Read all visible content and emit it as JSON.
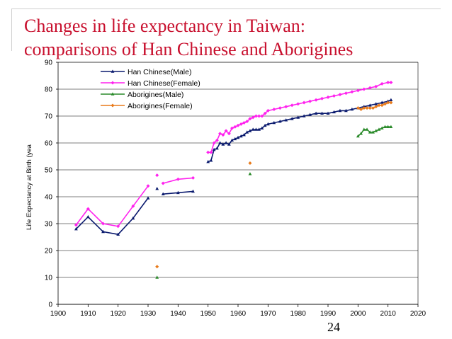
{
  "slide": {
    "title_line1": "Changes in life expectancy in Taiwan:",
    "title_line2": "comparisons of Han Chinese and Aborigines",
    "page_number": "24"
  },
  "colors": {
    "title": "#c8102e",
    "han_male": "#0a1a6e",
    "han_female": "#ff22ee",
    "abo_male": "#2a8a2a",
    "abo_female": "#e87a1a"
  },
  "chart_data": {
    "type": "line",
    "ylabel": "Life Expectancy at Birth (yea",
    "xlabel": "",
    "xlim": [
      1900,
      2020
    ],
    "ylim": [
      0,
      90
    ],
    "x_ticks": [
      "1900",
      "1910",
      "1920",
      "1930",
      "1940",
      "1950",
      "1960",
      "1970",
      "1980",
      "1990",
      "2000",
      "2010",
      "2020"
    ],
    "y_ticks": [
      "0",
      "10",
      "20",
      "30",
      "40",
      "50",
      "60",
      "70",
      "80",
      "90"
    ],
    "grid": "horizontal",
    "legend_position": "top-left",
    "series": [
      {
        "name": "Han Chinese(Male)",
        "color": "#0a1a6e",
        "marker": "triangle",
        "segments": [
          [
            [
              1906,
              28
            ],
            [
              1910,
              32.5
            ],
            [
              1915,
              27
            ],
            [
              1920,
              26
            ],
            [
              1925,
              32
            ],
            [
              1930,
              39.5
            ]
          ],
          [
            [
              1933,
              43
            ]
          ],
          [
            [
              1935,
              41
            ],
            [
              1940,
              41.5
            ],
            [
              1945,
              42
            ]
          ],
          [
            [
              1950,
              53
            ],
            [
              1951,
              53.5
            ],
            [
              1952,
              57.5
            ],
            [
              1953,
              58
            ],
            [
              1954,
              60
            ],
            [
              1955,
              59.5
            ],
            [
              1956,
              60
            ],
            [
              1957,
              59.5
            ],
            [
              1958,
              61
            ],
            [
              1959,
              61.5
            ],
            [
              1960,
              62
            ],
            [
              1961,
              62.5
            ],
            [
              1962,
              63
            ],
            [
              1963,
              64
            ],
            [
              1964,
              64.5
            ],
            [
              1965,
              65
            ],
            [
              1966,
              65
            ],
            [
              1967,
              65
            ],
            [
              1968,
              65.5
            ],
            [
              1969,
              66.5
            ],
            [
              1970,
              67
            ],
            [
              1972,
              67.5
            ],
            [
              1974,
              68
            ],
            [
              1976,
              68.5
            ],
            [
              1978,
              69
            ],
            [
              1980,
              69.5
            ],
            [
              1982,
              70
            ],
            [
              1984,
              70.5
            ],
            [
              1986,
              71
            ],
            [
              1988,
              71
            ],
            [
              1990,
              71
            ],
            [
              1992,
              71.5
            ],
            [
              1994,
              72
            ],
            [
              1996,
              72
            ],
            [
              1998,
              72.5
            ],
            [
              2000,
              73
            ],
            [
              2002,
              73.5
            ],
            [
              2004,
              74
            ],
            [
              2006,
              74.5
            ],
            [
              2008,
              75
            ],
            [
              2010,
              75.5
            ],
            [
              2011,
              76
            ]
          ]
        ]
      },
      {
        "name": "Han Chinese(Female)",
        "color": "#ff22ee",
        "marker": "diamond",
        "segments": [
          [
            [
              1906,
              29.5
            ],
            [
              1910,
              35.5
            ],
            [
              1915,
              30
            ],
            [
              1920,
              29
            ],
            [
              1925,
              36.5
            ],
            [
              1930,
              44
            ]
          ],
          [
            [
              1933,
              48
            ]
          ],
          [
            [
              1935,
              45
            ],
            [
              1940,
              46.5
            ],
            [
              1945,
              47
            ]
          ],
          [
            [
              1950,
              56.5
            ],
            [
              1951,
              56.5
            ],
            [
              1952,
              60
            ],
            [
              1953,
              61
            ],
            [
              1954,
              63.5
            ],
            [
              1955,
              63
            ],
            [
              1956,
              64.5
            ],
            [
              1957,
              63.5
            ],
            [
              1958,
              65.5
            ],
            [
              1959,
              66
            ],
            [
              1960,
              66.5
            ],
            [
              1961,
              67
            ],
            [
              1962,
              67.5
            ],
            [
              1963,
              68
            ],
            [
              1964,
              69
            ],
            [
              1965,
              69.5
            ],
            [
              1966,
              70
            ],
            [
              1967,
              70
            ],
            [
              1968,
              70
            ],
            [
              1969,
              71
            ],
            [
              1970,
              72
            ],
            [
              1972,
              72.5
            ],
            [
              1974,
              73
            ],
            [
              1976,
              73.5
            ],
            [
              1978,
              74
            ],
            [
              1980,
              74.5
            ],
            [
              1982,
              75
            ],
            [
              1984,
              75.5
            ],
            [
              1986,
              76
            ],
            [
              1988,
              76.5
            ],
            [
              1990,
              77
            ],
            [
              1992,
              77.5
            ],
            [
              1994,
              78
            ],
            [
              1996,
              78.5
            ],
            [
              1998,
              79
            ],
            [
              2000,
              79.5
            ],
            [
              2002,
              80
            ],
            [
              2004,
              80.5
            ],
            [
              2006,
              81
            ],
            [
              2008,
              82
            ],
            [
              2010,
              82.5
            ],
            [
              2011,
              82.5
            ]
          ]
        ]
      },
      {
        "name": "Aborigines(Male)",
        "color": "#2a8a2a",
        "marker": "triangle",
        "segments": [
          [
            [
              1933,
              10
            ]
          ],
          [
            [
              1964,
              48.5
            ]
          ],
          [
            [
              2000,
              62.5
            ],
            [
              2001,
              63.5
            ],
            [
              2002,
              65
            ],
            [
              2003,
              65
            ],
            [
              2004,
              64
            ],
            [
              2005,
              64
            ],
            [
              2006,
              64.5
            ],
            [
              2007,
              65
            ],
            [
              2008,
              65.5
            ],
            [
              2009,
              66
            ],
            [
              2010,
              66
            ],
            [
              2011,
              66
            ]
          ]
        ]
      },
      {
        "name": "Aborigines(Female)",
        "color": "#e87a1a",
        "marker": "diamond",
        "segments": [
          [
            [
              1933,
              14
            ]
          ],
          [
            [
              1964,
              52.5
            ]
          ],
          [
            [
              2000,
              73
            ],
            [
              2001,
              72.5
            ],
            [
              2002,
              73
            ],
            [
              2003,
              73
            ],
            [
              2004,
              73
            ],
            [
              2005,
              73
            ],
            [
              2006,
              73.5
            ],
            [
              2007,
              74
            ],
            [
              2008,
              74
            ],
            [
              2009,
              74.5
            ],
            [
              2010,
              75
            ],
            [
              2011,
              75
            ]
          ]
        ]
      }
    ]
  }
}
